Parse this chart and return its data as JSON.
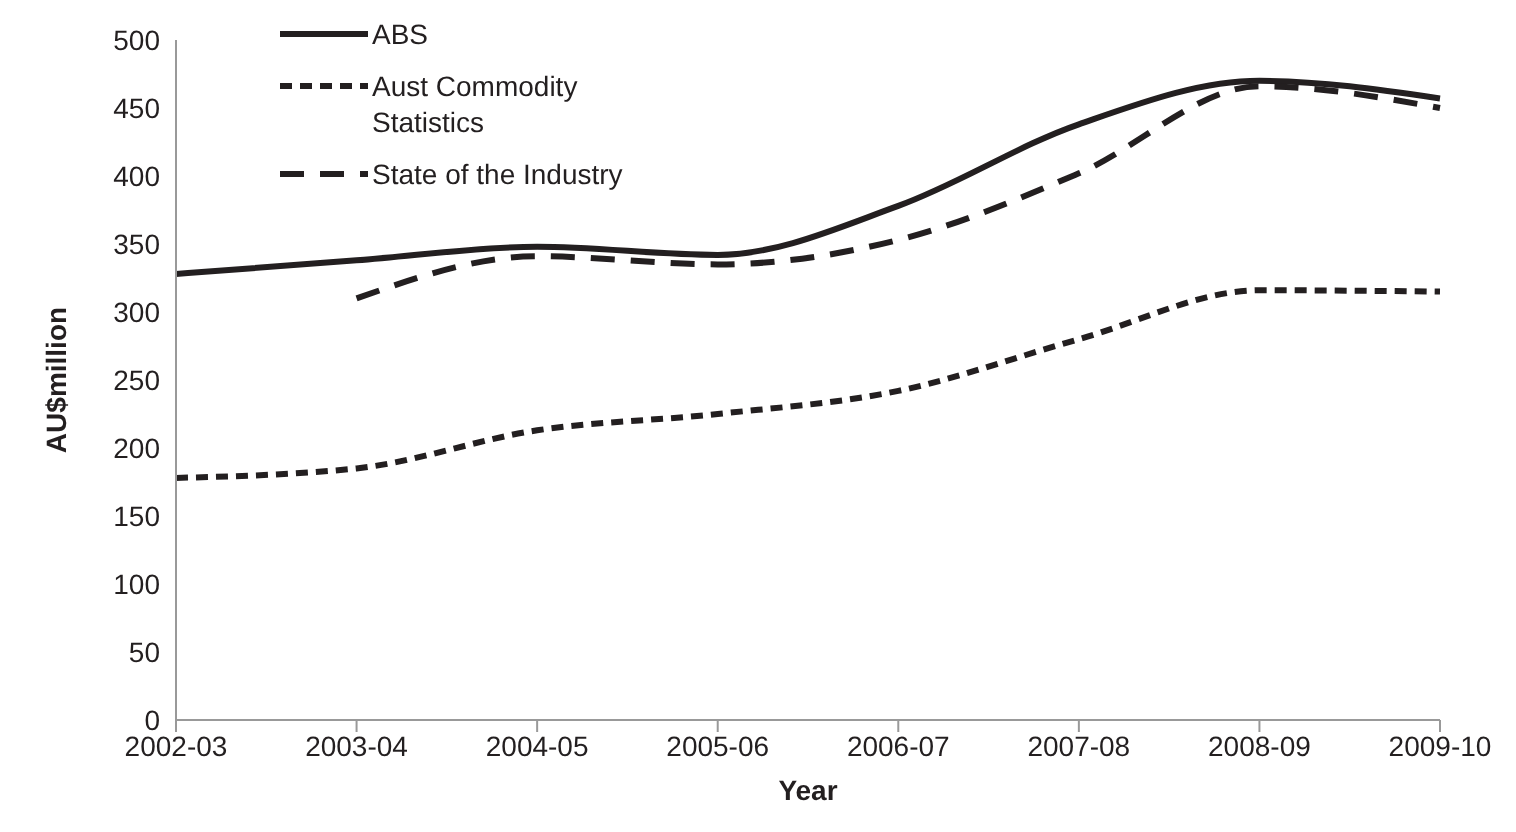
{
  "chart_data": {
    "type": "line",
    "xlabel": "Year",
    "ylabel": "AU$million",
    "categories": [
      "2002-03",
      "2003-04",
      "2004-05",
      "2005-06",
      "2006-07",
      "2007-08",
      "2008-09",
      "2009-10"
    ],
    "series": [
      {
        "name": "ABS",
        "color": "#231f20",
        "line_style": "solid",
        "values": [
          328,
          338,
          348,
          342,
          378,
          438,
          470,
          457
        ]
      },
      {
        "name": "Aust Commodity Statistics",
        "color": "#231f20",
        "line_style": "dotted",
        "values": [
          178,
          185,
          213,
          225,
          242,
          280,
          316,
          315
        ]
      },
      {
        "name": "State of the Industry",
        "color": "#231f20",
        "line_style": "dashed",
        "values": [
          null,
          310,
          341,
          335,
          353,
          402,
          466,
          450
        ]
      }
    ],
    "ylim": [
      0,
      500
    ],
    "yticks": [
      0,
      50,
      100,
      150,
      200,
      250,
      300,
      350,
      400,
      450,
      500
    ],
    "grid": false,
    "legend": "top left",
    "marker": "none"
  }
}
